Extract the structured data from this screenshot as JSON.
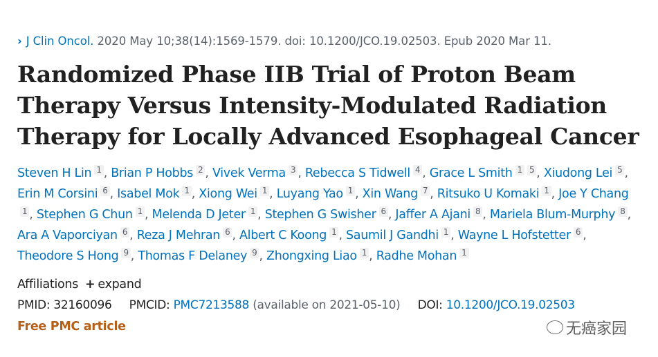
{
  "citation": {
    "journal": "J Clin Oncol.",
    "details": "2020 May 10;38(14):1569-1579. doi: 10.1200/JCO.19.02503. Epub 2020 Mar 11."
  },
  "title": "Randomized Phase IIB Trial of Proton Beam Therapy Versus Intensity-Modulated Radiation Therapy for Locally Advanced Esophageal Cancer",
  "authors": [
    {
      "name": "Steven H Lin",
      "aff": [
        "1"
      ]
    },
    {
      "name": "Brian P Hobbs",
      "aff": [
        "2"
      ]
    },
    {
      "name": "Vivek Verma",
      "aff": [
        "3"
      ]
    },
    {
      "name": "Rebecca S Tidwell",
      "aff": [
        "4"
      ]
    },
    {
      "name": "Grace L Smith",
      "aff": [
        "1",
        "5"
      ]
    },
    {
      "name": "Xiudong Lei",
      "aff": [
        "5"
      ]
    },
    {
      "name": "Erin M Corsini",
      "aff": [
        "6"
      ]
    },
    {
      "name": "Isabel Mok",
      "aff": [
        "1"
      ]
    },
    {
      "name": "Xiong Wei",
      "aff": [
        "1"
      ]
    },
    {
      "name": "Luyang Yao",
      "aff": [
        "1"
      ]
    },
    {
      "name": "Xin Wang",
      "aff": [
        "7"
      ]
    },
    {
      "name": "Ritsuko U Komaki",
      "aff": [
        "1"
      ]
    },
    {
      "name": "Joe Y Chang",
      "aff": [
        "1"
      ]
    },
    {
      "name": "Stephen G Chun",
      "aff": [
        "1"
      ]
    },
    {
      "name": "Melenda D Jeter",
      "aff": [
        "1"
      ]
    },
    {
      "name": "Stephen G Swisher",
      "aff": [
        "6"
      ]
    },
    {
      "name": "Jaffer A Ajani",
      "aff": [
        "8"
      ]
    },
    {
      "name": "Mariela Blum-Murphy",
      "aff": [
        "8"
      ]
    },
    {
      "name": "Ara A Vaporciyan",
      "aff": [
        "6"
      ]
    },
    {
      "name": "Reza J Mehran",
      "aff": [
        "6"
      ]
    },
    {
      "name": "Albert C Koong",
      "aff": [
        "1"
      ]
    },
    {
      "name": "Saumil J Gandhi",
      "aff": [
        "1"
      ]
    },
    {
      "name": "Wayne L Hofstetter",
      "aff": [
        "6"
      ]
    },
    {
      "name": "Theodore S Hong",
      "aff": [
        "9"
      ]
    },
    {
      "name": "Thomas F Delaney",
      "aff": [
        "9"
      ]
    },
    {
      "name": "Zhongxing Liao",
      "aff": [
        "1"
      ]
    },
    {
      "name": "Radhe Mohan",
      "aff": [
        "1"
      ]
    }
  ],
  "affiliations": {
    "label": "Affiliations",
    "expand": "expand"
  },
  "ids": {
    "pmid_label": "PMID:",
    "pmid": "32160096",
    "pmcid_label": "PMCID:",
    "pmcid": "PMC7213588",
    "pmcid_note": "(available on 2021-05-10)",
    "doi_label": "DOI:",
    "doi": "10.1200/JCO.19.02503"
  },
  "free_label": "Free PMC article",
  "watermark": "无癌家园",
  "colors": {
    "link": "#0071bc",
    "free": "#b65f16",
    "text": "#212121"
  }
}
